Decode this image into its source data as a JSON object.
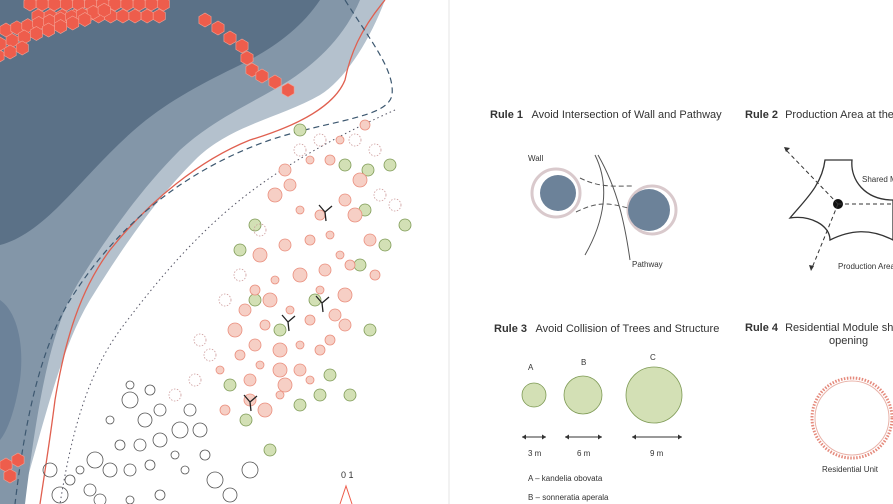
{
  "colors": {
    "water_dark": "#5b7187",
    "water_mid": "#8396a8",
    "water_light": "#b4c1cd",
    "hexagon": "#ee5d4c",
    "tree_green": "#d3e0b5",
    "tree_green_stroke": "#7e9a55",
    "tree_red": "#ea8f7e",
    "pod": "#6c8299",
    "ring": "#d9c9cc"
  },
  "scale_bar": {
    "label": "0 1"
  },
  "rules": [
    {
      "id": "rule-1",
      "number": "Rule 1",
      "title": "Avoid Intersection of Wall and Pathway",
      "labels": {
        "wall": "Wall",
        "pathway": "Pathway"
      }
    },
    {
      "id": "rule-2",
      "number": "Rule 2",
      "title": "Production Area at the Sh",
      "labels": {
        "shared": "Shared M",
        "production": "Production Area"
      }
    },
    {
      "id": "rule-3",
      "number": "Rule 3",
      "title": "Avoid Collision of Trees and Structure",
      "trees": [
        {
          "letter": "A",
          "span": "3 m",
          "diameter_m": 3
        },
        {
          "letter": "B",
          "span": "6 m",
          "diameter_m": 6
        },
        {
          "letter": "C",
          "span": "9 m",
          "diameter_m": 9
        }
      ],
      "legend": [
        "A – kandelia obovata",
        "B – sonneratia aperala"
      ]
    },
    {
      "id": "rule-4",
      "number": "Rule 4",
      "title_line1": "Residential Module shall h",
      "title_line2": "opening",
      "labels": {
        "unit": "Residential Unit"
      }
    }
  ]
}
